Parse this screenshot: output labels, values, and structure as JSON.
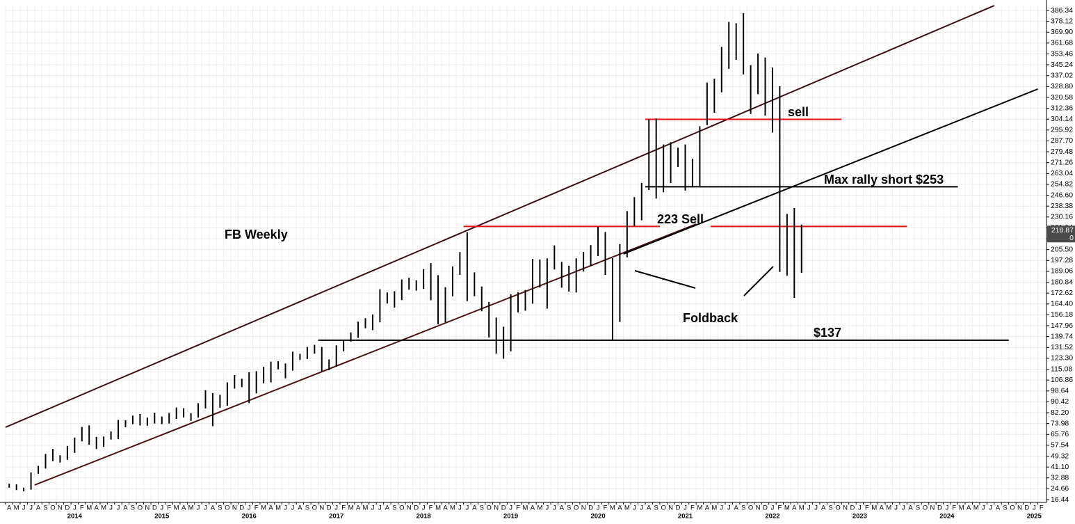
{
  "chart_data": {
    "type": "ohlc",
    "xlim": [
      "2013-04",
      "2025-03"
    ],
    "ylim": [
      14.34,
      390.02
    ],
    "grid": true,
    "color": "#000000",
    "yticks": [
      16.44,
      24.66,
      32.88,
      {
        "value": 41.1,
        "label": "41.10"
      },
      49.32,
      57.54,
      65.76,
      73.98,
      {
        "value": 82.2,
        "label": "82.20"
      },
      90.42,
      98.64,
      106.86,
      115.08,
      {
        "value": 123.3,
        "label": "123.30"
      },
      131.52,
      139.74,
      147.96,
      156.18,
      {
        "value": 164.4,
        "label": "164.40"
      },
      172.62,
      180.84,
      189.06,
      197.28,
      {
        "value": 205.5,
        "label": "205.50"
      },
      213.72,
      221.94,
      230.16,
      238.38,
      {
        "value": 246.6,
        "label": "246.60"
      },
      254.82,
      263.04,
      271.26,
      279.48,
      {
        "value": 287.7,
        "label": "287.70"
      },
      295.92,
      304.14,
      312.36,
      320.58,
      {
        "value": 328.8,
        "label": "328.80"
      },
      337.02,
      345.24,
      353.46,
      361.68,
      {
        "value": 369.9,
        "label": "369.90"
      },
      378.12,
      386.34
    ],
    "xticks": [
      {
        "value": "2013-04",
        "label": "A"
      },
      {
        "value": "2013-05",
        "label": "M"
      },
      {
        "value": "2013-06",
        "label": "J"
      },
      {
        "value": "2013-07",
        "label": "J"
      },
      {
        "value": "2013-08",
        "label": "A"
      },
      {
        "value": "2013-09",
        "label": "S"
      },
      {
        "value": "2013-10",
        "label": "O"
      },
      {
        "value": "2013-11",
        "label": "N"
      },
      {
        "value": "2013-12",
        "label": "D"
      },
      {
        "value": "2014-01",
        "label": "J"
      },
      {
        "value": "2014-02",
        "label": "F"
      },
      {
        "value": "2014-03",
        "label": "M"
      },
      {
        "value": "2014-04",
        "label": "A"
      },
      {
        "value": "2014-05",
        "label": "M"
      },
      {
        "value": "2014-06",
        "label": "J"
      },
      {
        "value": "2014-07",
        "label": "J"
      },
      {
        "value": "2014-08",
        "label": "A"
      },
      {
        "value": "2014-09",
        "label": "S"
      },
      {
        "value": "2014-10",
        "label": "O"
      },
      {
        "value": "2014-11",
        "label": "N"
      },
      {
        "value": "2014-12",
        "label": "D"
      },
      {
        "value": "2015-01",
        "label": "J"
      },
      {
        "value": "2015-02",
        "label": "F"
      },
      {
        "value": "2015-03",
        "label": "M"
      },
      {
        "value": "2015-04",
        "label": "A"
      },
      {
        "value": "2015-05",
        "label": "M"
      },
      {
        "value": "2015-06",
        "label": "J"
      },
      {
        "value": "2015-07",
        "label": "J"
      },
      {
        "value": "2015-08",
        "label": "A"
      },
      {
        "value": "2015-09",
        "label": "S"
      },
      {
        "value": "2015-10",
        "label": "O"
      },
      {
        "value": "2015-11",
        "label": "N"
      },
      {
        "value": "2015-12",
        "label": "D"
      },
      {
        "value": "2016-01",
        "label": "J"
      },
      {
        "value": "2016-02",
        "label": "F"
      },
      {
        "value": "2016-03",
        "label": "M"
      },
      {
        "value": "2016-04",
        "label": "A"
      },
      {
        "value": "2016-05",
        "label": "M"
      },
      {
        "value": "2016-06",
        "label": "J"
      },
      {
        "value": "2016-07",
        "label": "J"
      },
      {
        "value": "2016-08",
        "label": "A"
      },
      {
        "value": "2016-09",
        "label": "S"
      },
      {
        "value": "2016-10",
        "label": "O"
      },
      {
        "value": "2016-11",
        "label": "N"
      },
      {
        "value": "2016-12",
        "label": "D"
      },
      {
        "value": "2017-01",
        "label": "J"
      },
      {
        "value": "2017-02",
        "label": "F"
      },
      {
        "value": "2017-03",
        "label": "M"
      },
      {
        "value": "2017-04",
        "label": "A"
      },
      {
        "value": "2017-05",
        "label": "M"
      },
      {
        "value": "2017-06",
        "label": "J"
      },
      {
        "value": "2017-07",
        "label": "J"
      },
      {
        "value": "2017-08",
        "label": "A"
      },
      {
        "value": "2017-09",
        "label": "S"
      },
      {
        "value": "2017-10",
        "label": "O"
      },
      {
        "value": "2017-11",
        "label": "N"
      },
      {
        "value": "2017-12",
        "label": "D"
      },
      {
        "value": "2018-01",
        "label": "J"
      },
      {
        "value": "2018-02",
        "label": "F"
      },
      {
        "value": "2018-03",
        "label": "M"
      },
      {
        "value": "2018-04",
        "label": "A"
      },
      {
        "value": "2018-05",
        "label": "M"
      },
      {
        "value": "2018-06",
        "label": "J"
      },
      {
        "value": "2018-07",
        "label": "J"
      },
      {
        "value": "2018-08",
        "label": "A"
      },
      {
        "value": "2018-09",
        "label": "S"
      },
      {
        "value": "2018-10",
        "label": "O"
      },
      {
        "value": "2018-11",
        "label": "N"
      },
      {
        "value": "2018-12",
        "label": "D"
      },
      {
        "value": "2019-01",
        "label": "J"
      },
      {
        "value": "2019-02",
        "label": "F"
      },
      {
        "value": "2019-03",
        "label": "M"
      },
      {
        "value": "2019-04",
        "label": "A"
      },
      {
        "value": "2019-05",
        "label": "M"
      },
      {
        "value": "2019-06",
        "label": "J"
      },
      {
        "value": "2019-07",
        "label": "J"
      },
      {
        "value": "2019-08",
        "label": "A"
      },
      {
        "value": "2019-09",
        "label": "S"
      },
      {
        "value": "2019-10",
        "label": "O"
      },
      {
        "value": "2019-11",
        "label": "N"
      },
      {
        "value": "2019-12",
        "label": "D"
      },
      {
        "value": "2020-01",
        "label": "J"
      },
      {
        "value": "2020-02",
        "label": "F"
      },
      {
        "value": "2020-03",
        "label": "M"
      },
      {
        "value": "2020-04",
        "label": "A"
      },
      {
        "value": "2020-05",
        "label": "M"
      },
      {
        "value": "2020-06",
        "label": "J"
      },
      {
        "value": "2020-07",
        "label": "J"
      },
      {
        "value": "2020-08",
        "label": "A"
      },
      {
        "value": "2020-09",
        "label": "S"
      },
      {
        "value": "2020-10",
        "label": "O"
      },
      {
        "value": "2020-11",
        "label": "N"
      },
      {
        "value": "2020-12",
        "label": "D"
      },
      {
        "value": "2021-01",
        "label": "J"
      },
      {
        "value": "2021-02",
        "label": "F"
      },
      {
        "value": "2021-03",
        "label": "M"
      },
      {
        "value": "2021-04",
        "label": "A"
      },
      {
        "value": "2021-05",
        "label": "M"
      },
      {
        "value": "2021-06",
        "label": "J"
      },
      {
        "value": "2021-07",
        "label": "J"
      },
      {
        "value": "2021-08",
        "label": "A"
      },
      {
        "value": "2021-09",
        "label": "S"
      },
      {
        "value": "2021-10",
        "label": "O"
      },
      {
        "value": "2021-11",
        "label": "N"
      },
      {
        "value": "2021-12",
        "label": "D"
      },
      {
        "value": "2022-01",
        "label": "J"
      },
      {
        "value": "2022-02",
        "label": "F"
      },
      {
        "value": "2022-03",
        "label": "M"
      },
      {
        "value": "2022-04",
        "label": "A"
      },
      {
        "value": "2022-05",
        "label": "M"
      },
      {
        "value": "2022-06",
        "label": "J"
      },
      {
        "value": "2022-07",
        "label": "J"
      },
      {
        "value": "2022-08",
        "label": "A"
      },
      {
        "value": "2022-09",
        "label": "S"
      },
      {
        "value": "2022-10",
        "label": "O"
      },
      {
        "value": "2022-11",
        "label": "N"
      },
      {
        "value": "2022-12",
        "label": "D"
      },
      {
        "value": "2023-01",
        "label": "J"
      },
      {
        "value": "2023-02",
        "label": "F"
      },
      {
        "value": "2023-03",
        "label": "M"
      },
      {
        "value": "2023-04",
        "label": "A"
      },
      {
        "value": "2023-05",
        "label": "M"
      },
      {
        "value": "2023-06",
        "label": "J"
      },
      {
        "value": "2023-07",
        "label": "J"
      },
      {
        "value": "2023-08",
        "label": "A"
      },
      {
        "value": "2023-09",
        "label": "S"
      },
      {
        "value": "2023-10",
        "label": "O"
      },
      {
        "value": "2023-11",
        "label": "N"
      },
      {
        "value": "2023-12",
        "label": "D"
      },
      {
        "value": "2024-01",
        "label": "J"
      },
      {
        "value": "2024-02",
        "label": "F"
      },
      {
        "value": "2024-03",
        "label": "M"
      },
      {
        "value": "2024-04",
        "label": "A"
      },
      {
        "value": "2024-05",
        "label": "M"
      },
      {
        "value": "2024-06",
        "label": "J"
      },
      {
        "value": "2024-07",
        "label": "J"
      },
      {
        "value": "2024-08",
        "label": "A"
      },
      {
        "value": "2024-09",
        "label": "S"
      },
      {
        "value": "2024-10",
        "label": "O"
      },
      {
        "value": "2024-11",
        "label": "N"
      },
      {
        "value": "2024-12",
        "label": "D"
      },
      {
        "value": "2025-01",
        "label": "J"
      },
      {
        "value": "2025-02",
        "label": "F"
      }
    ],
    "year_labels": [
      {
        "value": "2014-01",
        "label": "2014"
      },
      {
        "value": "2015-01",
        "label": "2015"
      },
      {
        "value": "2016-01",
        "label": "2016"
      },
      {
        "value": "2017-01",
        "label": "2017"
      },
      {
        "value": "2018-01",
        "label": "2018"
      },
      {
        "value": "2019-01",
        "label": "2019"
      },
      {
        "value": "2020-01",
        "label": "2020"
      },
      {
        "value": "2021-01",
        "label": "2021"
      },
      {
        "value": "2022-01",
        "label": "2022"
      },
      {
        "value": "2023-01",
        "label": "2023"
      },
      {
        "value": "2024-01",
        "label": "2024"
      },
      {
        "value": "2025-01",
        "label": "2025"
      }
    ],
    "x": [
      "2013-04",
      "2013-05",
      "2013-06",
      "2013-07",
      "2013-08",
      "2013-09",
      "2013-10",
      "2013-11",
      "2013-12",
      "2014-01",
      "2014-02",
      "2014-03",
      "2014-04",
      "2014-05",
      "2014-06",
      "2014-07",
      "2014-08",
      "2014-09",
      "2014-10",
      "2014-11",
      "2014-12",
      "2015-01",
      "2015-02",
      "2015-03",
      "2015-04",
      "2015-05",
      "2015-06",
      "2015-07",
      "2015-08",
      "2015-09",
      "2015-10",
      "2015-11",
      "2015-12",
      "2016-01",
      "2016-02",
      "2016-03",
      "2016-04",
      "2016-05",
      "2016-06",
      "2016-07",
      "2016-08",
      "2016-09",
      "2016-10",
      "2016-11",
      "2016-12",
      "2017-01",
      "2017-02",
      "2017-03",
      "2017-04",
      "2017-05",
      "2017-06",
      "2017-07",
      "2017-08",
      "2017-09",
      "2017-10",
      "2017-11",
      "2017-12",
      "2018-01",
      "2018-02",
      "2018-03",
      "2018-04",
      "2018-05",
      "2018-06",
      "2018-07",
      "2018-08",
      "2018-09",
      "2018-10",
      "2018-11",
      "2018-12",
      "2019-01",
      "2019-02",
      "2019-03",
      "2019-04",
      "2019-05",
      "2019-06",
      "2019-07",
      "2019-08",
      "2019-09",
      "2019-10",
      "2019-11",
      "2019-12",
      "2020-01",
      "2020-02",
      "2020-03",
      "2020-04",
      "2020-05",
      "2020-06",
      "2020-07",
      "2020-08",
      "2020-09",
      "2020-10",
      "2020-11",
      "2020-12",
      "2021-01",
      "2021-02",
      "2021-03",
      "2021-04",
      "2021-05",
      "2021-06",
      "2021-07",
      "2021-08",
      "2021-09",
      "2021-10",
      "2021-11",
      "2021-12",
      "2022-01",
      "2022-02",
      "2022-03",
      "2022-04",
      "2022-05"
    ],
    "high": [
      28.5,
      28.0,
      25.5,
      37.0,
      42.0,
      51.0,
      54.8,
      50.0,
      57.0,
      63.4,
      71.4,
      72.6,
      63.9,
      64.2,
      68.0,
      76.7,
      76.5,
      80.0,
      81.2,
      78.5,
      82.2,
      79.3,
      81.9,
      86.1,
      85.6,
      81.8,
      89.4,
      99.2,
      97.0,
      95.7,
      105.1,
      110.6,
      107.9,
      112.8,
      113.6,
      116.9,
      120.8,
      121.1,
      119.4,
      128.3,
      126.7,
      131.9,
      133.5,
      131.9,
      122.5,
      133.1,
      137.2,
      142.9,
      151.0,
      153.6,
      156.5,
      175.5,
      173.1,
      174.0,
      182.9,
      184.3,
      182.3,
      190.7,
      195.3,
      186.1,
      177.1,
      192.7,
      203.6,
      218.6,
      188.3,
      177.6,
      165.9,
      154.1,
      147.2,
      171.7,
      173.3,
      175.0,
      198.5,
      198.0,
      198.9,
      208.7,
      196.3,
      193.3,
      198.9,
      203.8,
      208.9,
      222.7,
      218.8,
      199.0,
      209.7,
      234.6,
      245.2,
      255.9,
      303.9,
      304.7,
      285.0,
      286.7,
      282.6,
      285.0,
      274.3,
      298.8,
      331.8,
      334.7,
      358.8,
      377.6,
      376.6,
      384.3,
      345.0,
      353.8,
      350.7,
      343.1,
      329.0,
      232.5,
      236.9,
      224.4
    ],
    "low": [
      25.5,
      23.7,
      22.7,
      24.0,
      36.0,
      40.0,
      45.5,
      44.5,
      46.5,
      51.8,
      60.5,
      58.0,
      54.7,
      56.3,
      61.9,
      62.2,
      71.2,
      73.5,
      72.5,
      72.3,
      74.0,
      73.5,
      74.0,
      77.5,
      78.6,
      76.0,
      78.5,
      85.4,
      72.0,
      86.0,
      87.5,
      100.4,
      101.5,
      89.4,
      96.8,
      104.4,
      105.1,
      115.0,
      108.2,
      114.0,
      122.1,
      122.8,
      126.8,
      113.6,
      114.3,
      116.9,
      128.6,
      136.0,
      138.8,
      146.0,
      144.6,
      150.5,
      164.7,
      161.6,
      167.3,
      175.2,
      174.5,
      175.8,
      167.2,
      149.0,
      150.5,
      170.2,
      186.4,
      166.6,
      170.3,
      158.9,
      139.0,
      126.9,
      123.0,
      128.6,
      158.0,
      159.3,
      164.6,
      176.8,
      160.8,
      190.5,
      176.7,
      173.8,
      173.1,
      188.9,
      193.2,
      200.6,
      186.4,
      137.1,
      150.8,
      199.7,
      223.3,
      227.7,
      250.6,
      244.1,
      248.9,
      255.8,
      268.0,
      250.2,
      253.5,
      253.7,
      299.6,
      309.0,
      324.4,
      342.2,
      349.0,
      338.0,
      308.1,
      323.0,
      306.8,
      294.0,
      188.6,
      185.8,
      169.0,
      188.0
    ],
    "last_price": 218.87,
    "last_volume": 0,
    "trendlines": [
      {
        "start": [
          "2013-04",
          71.2
        ],
        "end": [
          "2024-08",
          390.0
        ],
        "color": "#3a1212"
      },
      {
        "start": [
          "2013-08",
          27.5
        ],
        "end": [
          "2021-03",
          224.8
        ],
        "color": "#4a1515"
      },
      {
        "start": [
          "2020-05",
          202.2
        ],
        "end": [
          "2025-02",
          326.9
        ],
        "color": "#000000"
      }
    ],
    "levels": [
      {
        "value": 304,
        "from": "2020-08",
        "to": "2022-10",
        "color": "#e01010"
      },
      {
        "value": 253,
        "from": "2020-08",
        "to": "2024-02",
        "color": "#000000"
      },
      {
        "value": 223,
        "from": "2018-07",
        "to": "2020-09",
        "color": "#e01010"
      },
      {
        "value": 223,
        "from": "2021-05",
        "to": "2023-07",
        "color": "#e01010"
      },
      {
        "value": 137,
        "from": "2016-11",
        "to": "2024-09",
        "color": "#000000"
      }
    ],
    "annotations": [
      "FB Weekly",
      "223 Sell",
      "sell",
      "Max rally short $253",
      "$137",
      "Foldback"
    ]
  }
}
